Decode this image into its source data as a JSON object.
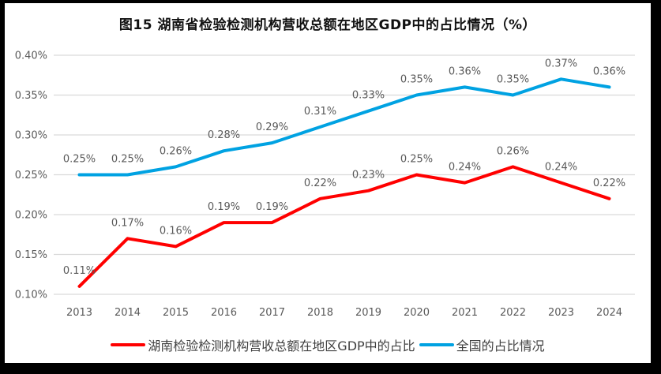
{
  "chart_data": {
    "type": "line",
    "title": "图15 湖南省检验检测机构营收总额在地区GDP中的占比情况（%）",
    "categories": [
      "2013",
      "2014",
      "2015",
      "2016",
      "2017",
      "2018",
      "2019",
      "2020",
      "2021",
      "2022",
      "2023",
      "2024"
    ],
    "series": [
      {
        "name": "湖南检验检测机构营收总额在地区GDP中的占比",
        "color": "#FF0000",
        "values": [
          0.11,
          0.17,
          0.16,
          0.19,
          0.19,
          0.22,
          0.23,
          0.25,
          0.24,
          0.26,
          0.24,
          0.22
        ],
        "labels": [
          "0.11%",
          "0.17%",
          "0.16%",
          "0.19%",
          "0.19%",
          "0.22%",
          "0.23%",
          "0.25%",
          "0.24%",
          "0.26%",
          "0.24%",
          "0.22%"
        ]
      },
      {
        "name": "全国的占比情况",
        "color": "#00A2E2",
        "values": [
          0.25,
          0.25,
          0.26,
          0.28,
          0.29,
          0.31,
          0.33,
          0.35,
          0.36,
          0.35,
          0.37,
          0.36
        ],
        "labels": [
          "0.25%",
          "0.25%",
          "0.26%",
          "0.28%",
          "0.29%",
          "0.31%",
          "0.33%",
          "0.35%",
          "0.36%",
          "0.35%",
          "0.37%",
          "0.36%"
        ]
      }
    ],
    "ylim": [
      0.1,
      0.4
    ],
    "yticks": [
      {
        "value": 0.1,
        "label": "0.10%"
      },
      {
        "value": 0.15,
        "label": "0.15%"
      },
      {
        "value": 0.2,
        "label": "0.20%"
      },
      {
        "value": 0.25,
        "label": "0.25%"
      },
      {
        "value": 0.3,
        "label": "0.30%"
      },
      {
        "value": 0.35,
        "label": "0.35%"
      },
      {
        "value": 0.4,
        "label": "0.40%"
      }
    ],
    "grid": true,
    "data_labels": true,
    "legend_position": "bottom",
    "line_width": 4
  },
  "colors": {
    "frame_background": "#000000",
    "canvas_background": "#FFFFFF",
    "gridline": "#D9D9D9",
    "tick_text": "#595959",
    "data_label_text": "#595959",
    "title_text": "#111111",
    "legend_text": "#404040"
  }
}
